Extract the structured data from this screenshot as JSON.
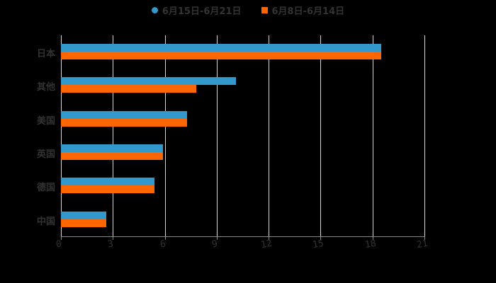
{
  "colors": {
    "series1": "#3399cc",
    "series2": "#ff6600",
    "background": "#000000",
    "grid": "#d8d8d8",
    "text": "#333333"
  },
  "legend": [
    {
      "label": "6月15日-6月21日",
      "shape": "circle",
      "color": "#3399cc"
    },
    {
      "label": "6月8日-6月14日",
      "shape": "square",
      "color": "#ff6600"
    }
  ],
  "x_axis": {
    "ticks": [
      "0",
      "3",
      "6",
      "9",
      "12",
      "15",
      "18",
      "21"
    ]
  },
  "categories": [
    "日本",
    "其他",
    "美国",
    "英国",
    "德国",
    "中国"
  ],
  "chart_data": {
    "type": "bar",
    "orientation": "horizontal",
    "title": "",
    "xlabel": "",
    "ylabel": "",
    "categories": [
      "日本",
      "其他",
      "美国",
      "英国",
      "德国",
      "中国"
    ],
    "series": [
      {
        "name": "6月15日-6月21日",
        "color": "#3399cc",
        "values": [
          18.5,
          10.1,
          7.3,
          5.9,
          5.4,
          2.6
        ]
      },
      {
        "name": "6月8日-6月14日",
        "color": "#ff6600",
        "values": [
          18.5,
          7.8,
          7.3,
          5.9,
          5.4,
          2.6
        ]
      }
    ],
    "xlim": [
      0,
      21
    ],
    "x_ticks": [
      0,
      3,
      6,
      9,
      12,
      15,
      18,
      21
    ],
    "grid": "vertical",
    "legend_position": "top"
  }
}
